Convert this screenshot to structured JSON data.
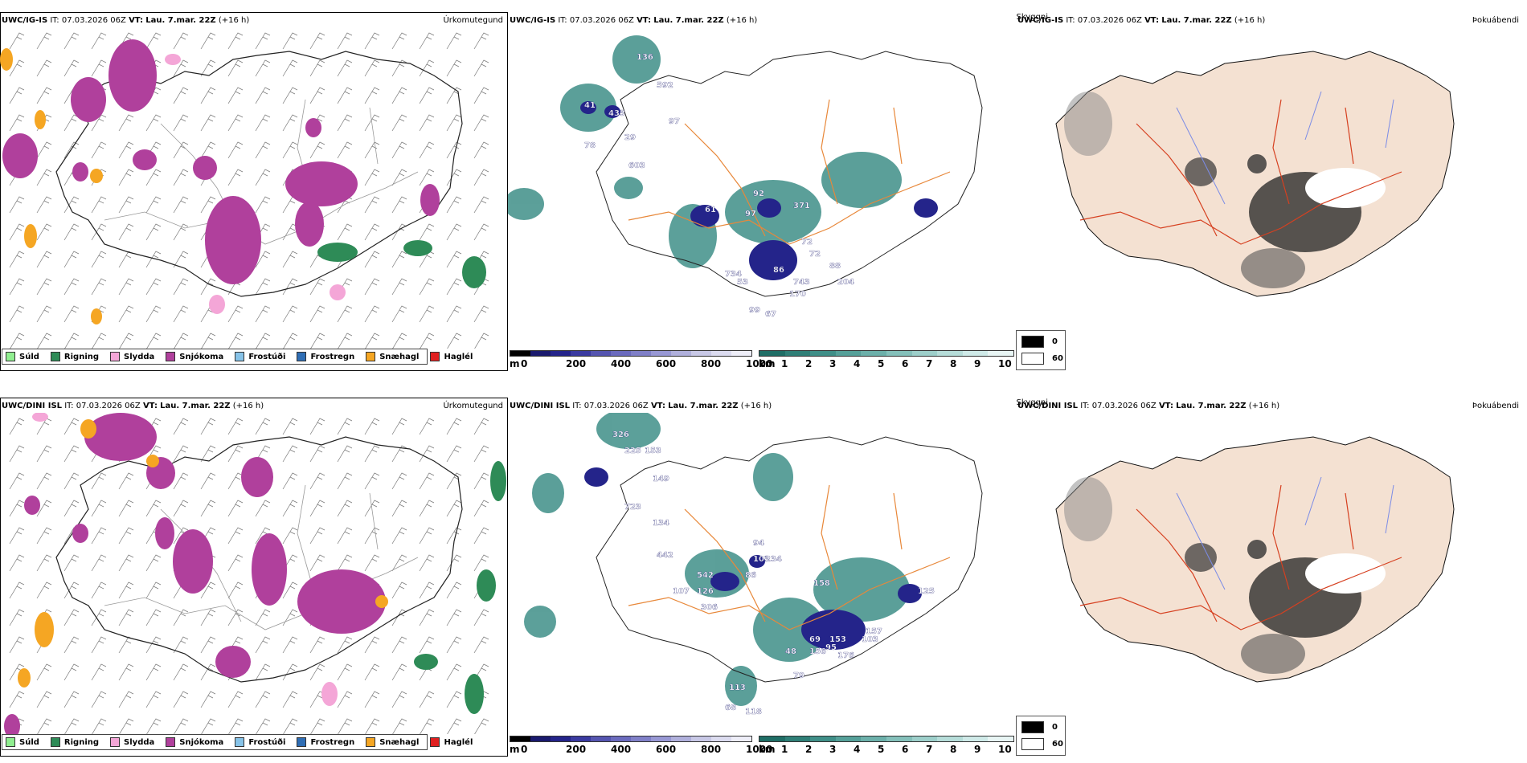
{
  "rows": [
    {
      "model": "UWC/IG-IS",
      "it": "IT: 07.03.2026 06Z",
      "vt_label": "VT:",
      "vt": "Lau. 7.mar. 22Z",
      "lead": "(+16 h)",
      "cloud_labels": [
        "136",
        "592",
        "41",
        "433",
        "97",
        "29",
        "78",
        "603",
        "61",
        "92",
        "97",
        "371",
        "72",
        "72",
        "734",
        "86",
        "53",
        "743",
        "88",
        "204",
        "170",
        "99",
        "67"
      ]
    },
    {
      "model": "UWC/DINI ISL",
      "it": "IT: 07.03.2026 06Z",
      "vt_label": "VT:",
      "vt": "Lau. 7.mar. 22Z",
      "lead": "(+16 h)",
      "cloud_labels": [
        "326",
        "225",
        "153",
        "149",
        "723",
        "134",
        "442",
        "542",
        "107",
        "126",
        "306",
        "94",
        "103",
        "86",
        "234",
        "158",
        "125",
        "69",
        "157",
        "153",
        "95",
        "156",
        "103",
        "176",
        "48",
        "79",
        "113",
        "68",
        "118"
      ]
    }
  ],
  "titles": {
    "precip_type": "Úrkomutegund",
    "cloud": "Skyggni",
    "fog": "Þokuábendi"
  },
  "precip_legend": [
    {
      "label": "Súld",
      "color": "#90ee90"
    },
    {
      "label": "Rigning",
      "color": "#2e8b57"
    },
    {
      "label": "Slydda",
      "color": "#f4a6d7"
    },
    {
      "label": "Snjókoma",
      "color": "#b0409c"
    },
    {
      "label": "Frostúði",
      "color": "#87c3e8"
    },
    {
      "label": "Frostregn",
      "color": "#2f6eb5"
    },
    {
      "label": "Snæhagl",
      "color": "#f5a623"
    },
    {
      "label": "Haglél",
      "color": "#e02020"
    }
  ],
  "cloudbase_scale": {
    "unit": "m",
    "ticks": [
      "0",
      "200",
      "400",
      "600",
      "800",
      "1000"
    ],
    "colors": [
      "#000000",
      "#1a1a6e",
      "#24248a",
      "#3a3aa0",
      "#5555b0",
      "#6b6bbe",
      "#8080c8",
      "#9898d4",
      "#b0b0dc",
      "#c8c8e6",
      "#dcdcf0",
      "#eeeef8"
    ]
  },
  "visibility_scale": {
    "unit": "km",
    "ticks": [
      "1",
      "2",
      "3",
      "4",
      "5",
      "6",
      "7",
      "8",
      "9",
      "10"
    ],
    "colors": [
      "#1f6e66",
      "#2f7f77",
      "#3f8f88",
      "#55a099",
      "#6cb0aa",
      "#84c0ba",
      "#9dcfca",
      "#b6ddd9",
      "#cfeae8",
      "#e8f5f4"
    ]
  },
  "fog_legend": [
    {
      "label": "0",
      "color": "#000000"
    },
    {
      "label": "60",
      "color": "#ffffff"
    }
  ],
  "colors": {
    "land_fog": "#f4e1d2",
    "roads_orange": "#e8883a",
    "roads_red": "#d64020",
    "rivers": "#7b8ce6",
    "wind_barbs": "#777777"
  }
}
